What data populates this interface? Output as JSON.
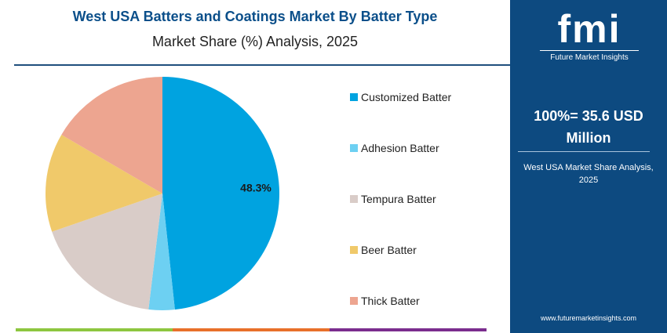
{
  "header": {
    "title": "West USA Batters and Coatings Market By Batter Type",
    "subtitle": "Market Share (%) Analysis, 2025"
  },
  "chart_data": {
    "type": "pie",
    "title": "West USA Batters and Coatings Market By Batter Type",
    "subtitle": "Market Share (%) Analysis, 2025",
    "categories": [
      "Customized Batter",
      "Adhesion Batter",
      "Tempura Batter",
      "Beer Batter",
      "Thick Batter"
    ],
    "values": [
      48.3,
      3.6,
      17.8,
      13.7,
      16.6
    ],
    "colors": [
      "#00a3e0",
      "#6dd0f2",
      "#d9ccc8",
      "#f0c96a",
      "#eda590"
    ],
    "data_labels": [
      "48.3%",
      "",
      "",
      "",
      ""
    ],
    "start_angle_deg": 0,
    "direction": "clockwise",
    "legend_position": "right"
  },
  "sidebar": {
    "logo_text": "fmi",
    "logo_subtext": "Future Market Insights",
    "total_line1": "100%= 35.6 USD",
    "total_line2": "Million",
    "desc_line1": "West USA Market Share Analysis,",
    "desc_line2": "2025",
    "url": "www.futuremarketinsights.com",
    "bg_color": "#0d4a80"
  },
  "bottom_bar_colors": [
    "#8dc63f",
    "#e8702a",
    "#7b2d8e"
  ]
}
